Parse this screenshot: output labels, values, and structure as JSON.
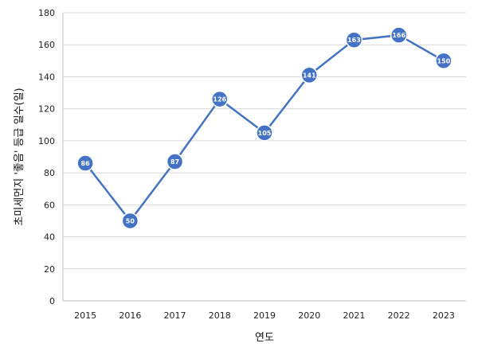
{
  "chart_data": {
    "type": "line",
    "x": [
      "2015",
      "2016",
      "2017",
      "2018",
      "2019",
      "2020",
      "2021",
      "2022",
      "2023"
    ],
    "values": [
      86,
      50,
      87,
      126,
      105,
      141,
      163,
      166,
      150
    ],
    "data_labels": [
      "86",
      "50",
      "87",
      "126",
      "105",
      "141",
      "163",
      "166",
      "150"
    ],
    "xlabel": "연도",
    "ylabel": "초미세먼지 '좋음' 등급 일수(일)",
    "ylim": [
      0,
      180
    ],
    "yticks": [
      0,
      20,
      40,
      60,
      80,
      100,
      120,
      140,
      160,
      180
    ],
    "grid": true,
    "legend": "none",
    "line_color": "#4472C4",
    "marker_fill": "#4472C4",
    "marker_stroke": "#ffffff",
    "grid_color": "#d9d9d9"
  }
}
